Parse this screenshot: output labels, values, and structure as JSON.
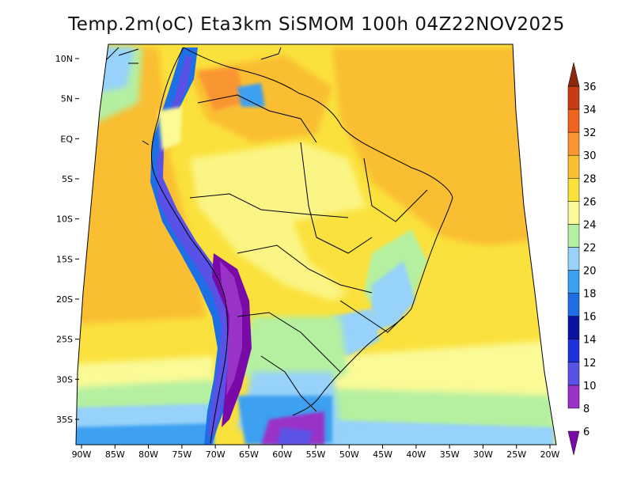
{
  "title": "Temp.2m(oC) Eta3km SiSMOM 100h 04Z22NOV2025",
  "map": {
    "lon_range": [
      -91,
      -19
    ],
    "lat_range": [
      -38,
      11
    ],
    "lat_ticks": [
      {
        "value": 10,
        "label": "10N"
      },
      {
        "value": 5,
        "label": "5N"
      },
      {
        "value": 0,
        "label": "EQ"
      },
      {
        "value": -5,
        "label": "5S"
      },
      {
        "value": -10,
        "label": "10S"
      },
      {
        "value": -15,
        "label": "15S"
      },
      {
        "value": -20,
        "label": "20S"
      },
      {
        "value": -25,
        "label": "25S"
      },
      {
        "value": -30,
        "label": "30S"
      },
      {
        "value": -35,
        "label": "35S"
      }
    ],
    "lon_ticks": [
      {
        "value": -90,
        "label": "90W"
      },
      {
        "value": -85,
        "label": "85W"
      },
      {
        "value": -80,
        "label": "80W"
      },
      {
        "value": -75,
        "label": "75W"
      },
      {
        "value": -70,
        "label": "70W"
      },
      {
        "value": -65,
        "label": "65W"
      },
      {
        "value": -60,
        "label": "60W"
      },
      {
        "value": -55,
        "label": "55W"
      },
      {
        "value": -50,
        "label": "50W"
      },
      {
        "value": -45,
        "label": "45W"
      },
      {
        "value": -40,
        "label": "40W"
      },
      {
        "value": -35,
        "label": "35W"
      },
      {
        "value": -30,
        "label": "30W"
      },
      {
        "value": -25,
        "label": "25W"
      },
      {
        "value": -20,
        "label": "20W"
      }
    ]
  },
  "colorbar": {
    "levels": [
      {
        "label": "6",
        "color": "#7a0aa8"
      },
      {
        "label": "8",
        "color": "#9a32c8"
      },
      {
        "label": "10",
        "color": "#5a52e6"
      },
      {
        "label": "12",
        "color": "#1e32dc"
      },
      {
        "label": "14",
        "color": "#0a14a0"
      },
      {
        "label": "16",
        "color": "#1e6ee6"
      },
      {
        "label": "18",
        "color": "#3ca0f0"
      },
      {
        "label": "20",
        "color": "#96d2fa"
      },
      {
        "label": "22",
        "color": "#b4f0a0"
      },
      {
        "label": "24",
        "color": "#fafa96"
      },
      {
        "label": "26",
        "color": "#fae13c"
      },
      {
        "label": "28",
        "color": "#fabe32"
      },
      {
        "label": "30",
        "color": "#fa9632"
      },
      {
        "label": "32",
        "color": "#f0641e"
      },
      {
        "label": "34",
        "color": "#c83c14"
      },
      {
        "label": "36",
        "color": "#8c2810"
      }
    ]
  }
}
